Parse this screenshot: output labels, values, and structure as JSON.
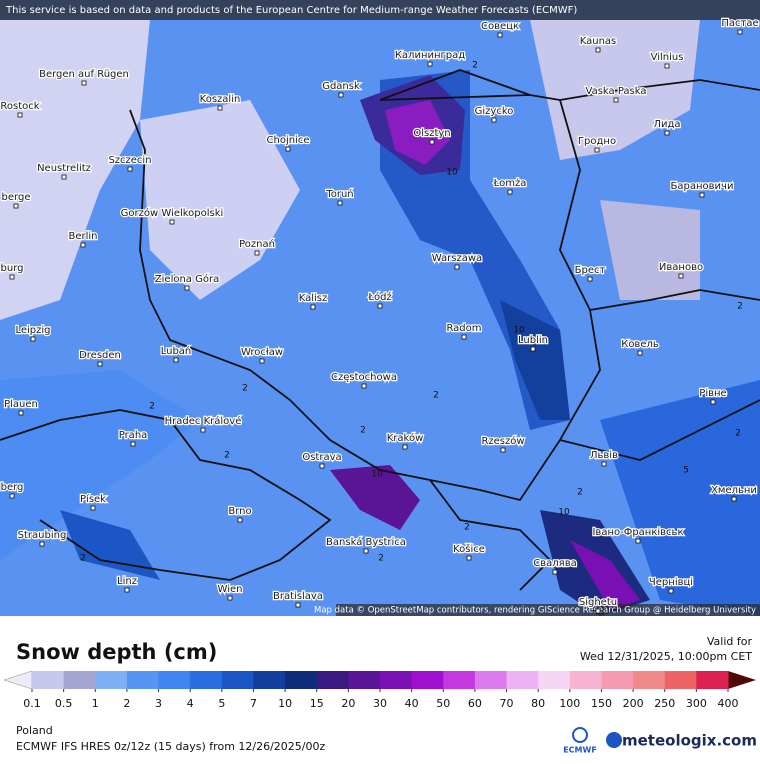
{
  "banner": "This service is based on data and products of the European Centre for Medium-range Weather Forecasts (ECMWF)",
  "attribution": "Map data © OpenStreetMap contributors, rendering GIScience Research Group @ Heidelberg University",
  "cities": [
    "Калининград",
    "Gdansk",
    "Olsztyn",
    "Gizycko",
    "Koszalin",
    "Bergen auf Rügen",
    "Rostock",
    "Szczecin",
    "Neustrelitz",
    "Chojnice",
    "Toruń",
    "Gorzów Wielkopolski",
    "Berlin",
    "Poznań",
    "Zielona Góra",
    "Kalisz",
    "Łódź",
    "Warszawa",
    "Radom",
    "Lublin",
    "Łomża",
    "Гродно",
    "Vilnius",
    "Kaunas",
    "Совецк",
    "Vaska Paska",
    "Лида",
    "Барановичи",
    "Иваново",
    "Брест",
    "Ковель",
    "Рівне",
    "Львів",
    "Хмельни",
    "Івано-Франківськ",
    "Чернівці",
    "Свалява",
    "Sighetu",
    "Košice",
    "Rzeszów",
    "Kraków",
    "Częstochowa",
    "Ostrava",
    "Wrocław",
    "Lubań",
    "Leipzig",
    "Dresden",
    "Plauen",
    "Hradec Králové",
    "Praha",
    "Písek",
    "Brno",
    "Straubing",
    "Linz",
    "Wien",
    "Bratislava",
    "Banská Bystrica",
    "berge",
    "burg",
    "berg",
    "Пастае"
  ],
  "contour_labels": [
    2,
    2,
    2,
    2,
    2,
    2,
    2,
    2,
    2,
    2,
    2,
    2,
    10,
    10,
    10,
    10,
    5
  ],
  "legend": {
    "title": "Snow depth (cm)",
    "valid_label": "Valid for",
    "valid_time": "Wed 12/31/2025, 10:00pm CET",
    "levels": [
      0.1,
      0.5,
      1,
      2,
      3,
      4,
      5,
      7,
      10,
      15,
      20,
      30,
      40,
      50,
      60,
      70,
      80,
      100,
      150,
      200,
      250,
      300,
      400
    ],
    "colors": [
      "#c8c8ee",
      "#a5a5d2",
      "#7fb0f5",
      "#5596f5",
      "#3f84f0",
      "#2a6de0",
      "#1c55c4",
      "#123f9e",
      "#0d2c7a",
      "#3a1a80",
      "#5a1496",
      "#7a10b4",
      "#a00fd0",
      "#c43ae0",
      "#dc7aee",
      "#ecb2f2",
      "#f6d4f4",
      "#f7b4d0",
      "#f59ab0",
      "#f08a8a",
      "#ee6464",
      "#dc2050"
    ],
    "under_color": "#ececf8",
    "over_color": "#500a0a"
  },
  "region": "Poland",
  "model": "ECMWF IFS HRES 0z/12z (15 days) from  12/26/2025/00z",
  "logo_left": "ECMWF",
  "logo_right": "meteologix.com"
}
